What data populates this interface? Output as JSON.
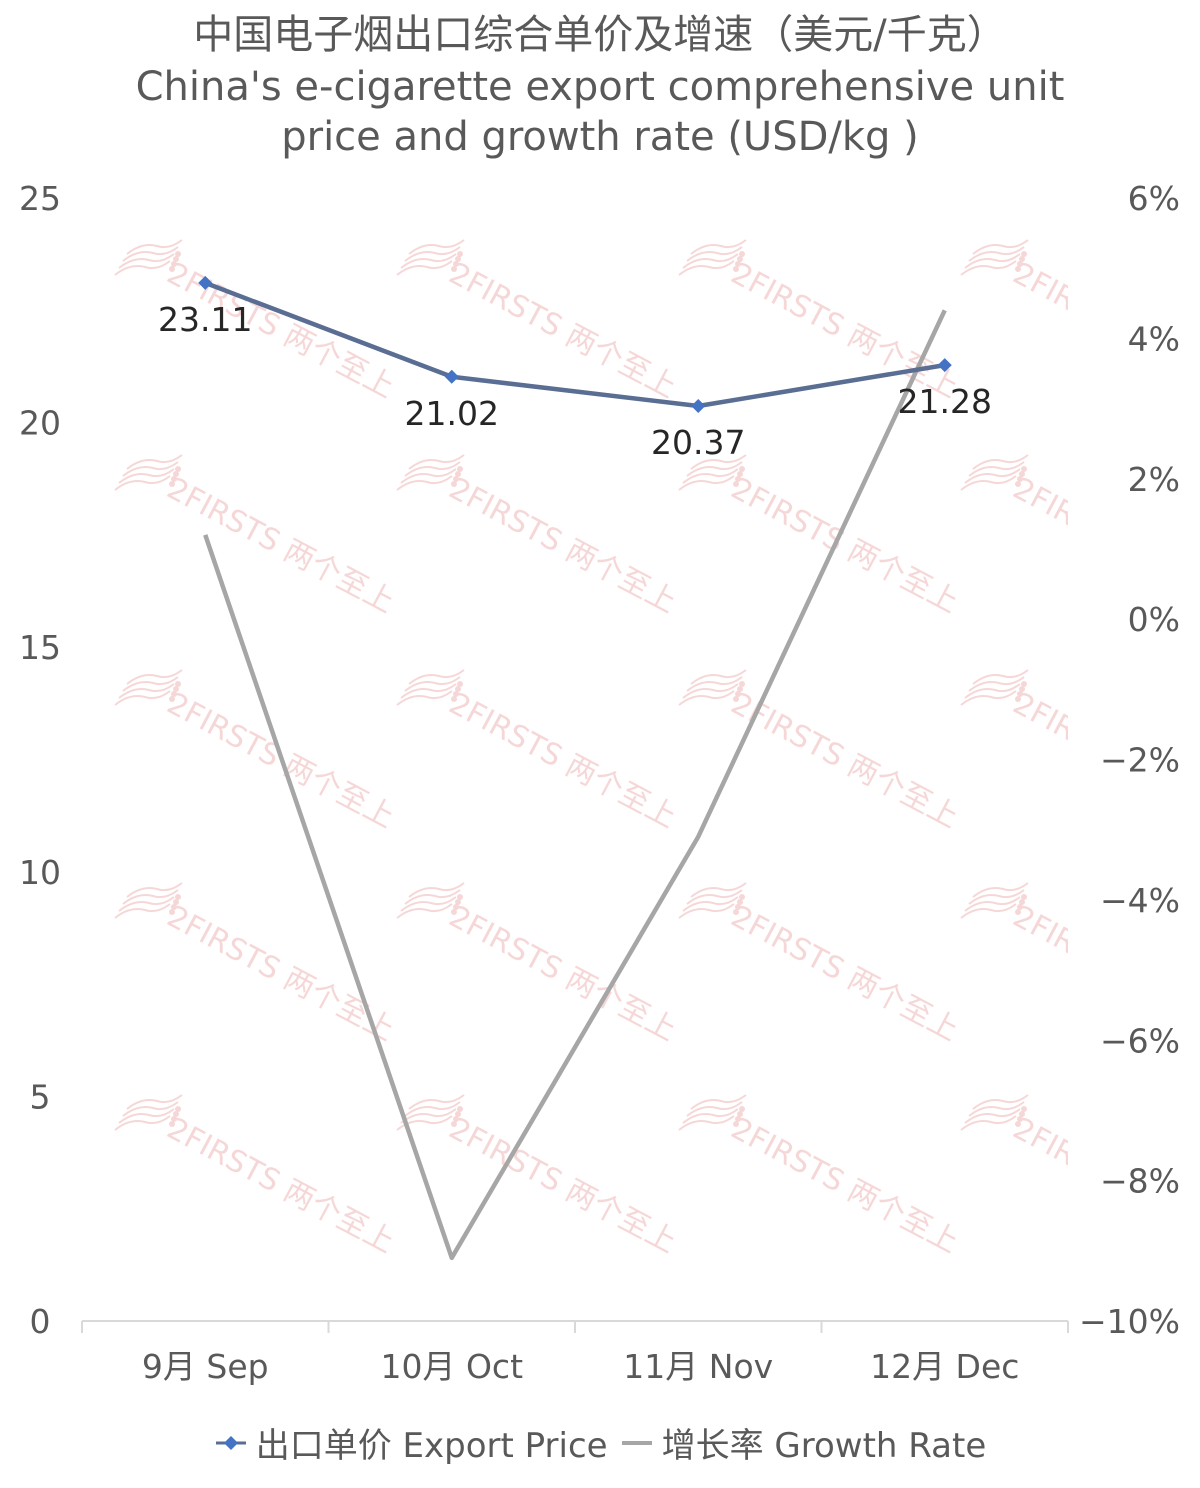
{
  "chart_data": {
    "type": "line",
    "title_cn": "中国电子烟出口综合单价及增速（美元/千克）",
    "title_en_line1": "China's e-cigarette export comprehensive unit",
    "title_en_line2": "price and growth rate (USD/kg )",
    "categories": [
      "9月 Sep",
      "10月 Oct",
      "11月 Nov",
      "12月 Dec"
    ],
    "y_left": {
      "min": 0,
      "max": 25,
      "ticks": [
        "0",
        "5",
        "10",
        "15",
        "20",
        "25"
      ]
    },
    "y_right": {
      "min": -10,
      "max": 6,
      "ticks": [
        "−10%",
        "−8%",
        "−6%",
        "−4%",
        "−2%",
        "0%",
        "2%",
        "4%",
        "6%"
      ]
    },
    "series": [
      {
        "name": "出口单价 Export Price",
        "axis": "left",
        "color": "#5A6E93",
        "marker_color": "#4472C4",
        "values": [
          23.11,
          21.02,
          20.37,
          21.28
        ],
        "labels": [
          "23.11",
          "21.02",
          "20.37",
          "21.28"
        ]
      },
      {
        "name": "增长率 Growth Rate",
        "axis": "right",
        "color": "#A6A6A6",
        "values": [
          1.2,
          -9.1,
          -3.1,
          4.4
        ]
      }
    ],
    "legend_position": "bottom",
    "grid": false
  },
  "watermark": {
    "brand": "2FIRSTS",
    "brand_cn": "两个至上"
  }
}
